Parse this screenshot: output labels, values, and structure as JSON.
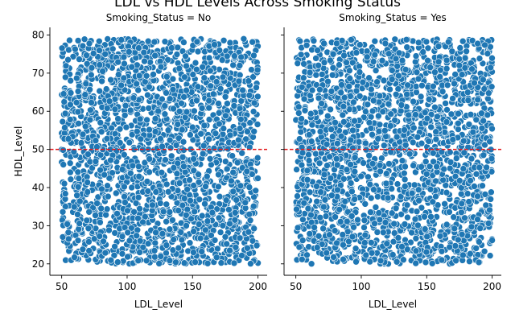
{
  "chart_data": {
    "type": "scatter",
    "title": "LDL vs HDL Levels Across Smoking Status",
    "xlabel": "LDL_Level",
    "ylabel": "HDL_Level",
    "xlim": [
      41,
      207
    ],
    "ylim": [
      17,
      82
    ],
    "x_ticks": [
      50,
      100,
      150,
      200
    ],
    "y_ticks": [
      20,
      30,
      40,
      50,
      60,
      70,
      80
    ],
    "grid": false,
    "reference_line": {
      "y": 50,
      "color": "#e31a1c",
      "style": "dashed"
    },
    "point_color": "#1f77b4",
    "data_coverage": "points densely fill LDL 50–200 and HDL 20–79 in both panels",
    "panels": [
      {
        "title": "Smoking_Status = No",
        "x_range": [
          50,
          200
        ],
        "y_range": [
          20,
          79
        ]
      },
      {
        "title": "Smoking_Status = Yes",
        "x_range": [
          50,
          200
        ],
        "y_range": [
          20,
          79
        ]
      }
    ]
  }
}
